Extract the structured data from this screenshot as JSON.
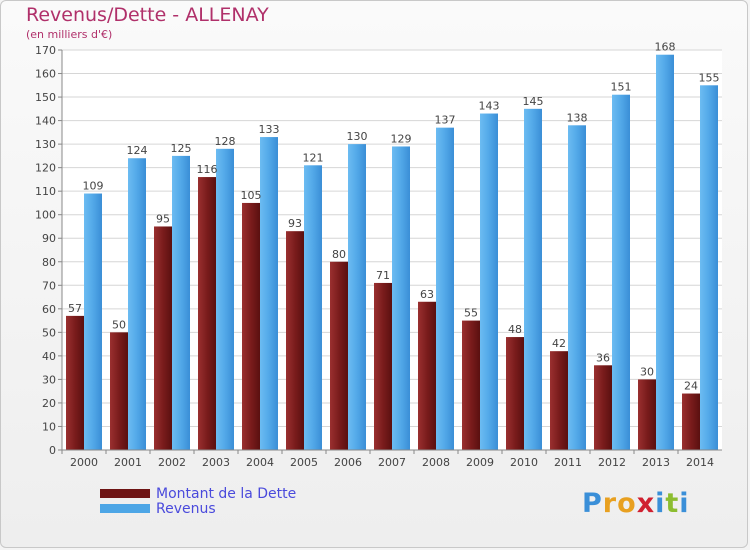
{
  "header": {
    "title": "Revenus/Dette - ALLENAY",
    "subtitle": "(en milliers d'€)"
  },
  "colors": {
    "dette": "#7a1c1c",
    "revenus": "#4da6e6",
    "title": "#b0306a",
    "legend_text": "#4a4adc"
  },
  "legend": {
    "items": [
      {
        "label": "Montant de la Dette",
        "color": "#6e1414"
      },
      {
        "label": "Revenus",
        "color": "#4da6e6"
      }
    ]
  },
  "logo": {
    "text": "Proxiti",
    "letters": [
      {
        "ch": "P",
        "color": "#3a8fd8"
      },
      {
        "ch": "r",
        "color": "#e8a020"
      },
      {
        "ch": "o",
        "color": "#e8a020"
      },
      {
        "ch": "x",
        "color": "#d02030"
      },
      {
        "ch": "i",
        "color": "#3a8fd8"
      },
      {
        "ch": "t",
        "color": "#8cbd30"
      },
      {
        "ch": "i",
        "color": "#3a8fd8"
      }
    ]
  },
  "chart_data": {
    "type": "bar",
    "title": "Revenus/Dette - ALLENAY",
    "ylabel": "(en milliers d'€)",
    "ylim": [
      0,
      170
    ],
    "ytick_step": 10,
    "grid": true,
    "legend_position": "bottom-left",
    "categories": [
      "2000",
      "2001",
      "2002",
      "2003",
      "2004",
      "2005",
      "2006",
      "2007",
      "2008",
      "2009",
      "2010",
      "2011",
      "2012",
      "2013",
      "2014"
    ],
    "series": [
      {
        "name": "Montant de la Dette",
        "values": [
          57,
          50,
          95,
          116,
          105,
          93,
          80,
          71,
          63,
          55,
          48,
          42,
          36,
          30,
          24
        ]
      },
      {
        "name": "Revenus",
        "values": [
          109,
          124,
          125,
          128,
          133,
          121,
          130,
          129,
          137,
          143,
          145,
          138,
          151,
          168,
          155
        ]
      }
    ]
  }
}
